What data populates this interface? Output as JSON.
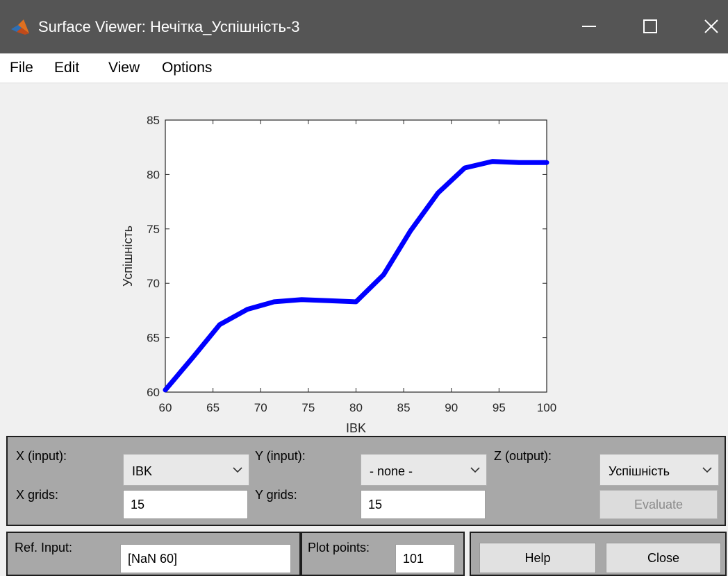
{
  "window": {
    "title": "Surface Viewer: Нечітка_Успішність-3",
    "icon": "matlab-logo-icon",
    "controls": [
      "minimize-icon",
      "maximize-icon",
      "close-icon"
    ]
  },
  "menu": {
    "items": [
      {
        "label": "File"
      },
      {
        "label": "Edit"
      },
      {
        "label": "View"
      },
      {
        "label": "Options"
      }
    ]
  },
  "chart_data": {
    "type": "line",
    "title": "",
    "xlabel": "IBK",
    "ylabel": "Успішність",
    "xlim": [
      60,
      100
    ],
    "ylim": [
      60,
      85
    ],
    "x_ticks": [
      60,
      65,
      70,
      75,
      80,
      85,
      90,
      95,
      100
    ],
    "y_ticks": [
      60,
      65,
      70,
      75,
      80,
      85
    ],
    "grid": false,
    "series": [
      {
        "color": "#0000ff",
        "x": [
          60,
          62.9,
          65.7,
          68.6,
          71.4,
          74.3,
          77.1,
          80,
          82.9,
          85.7,
          88.6,
          91.4,
          94.3,
          97.1,
          100
        ],
        "y": [
          60.2,
          63.2,
          66.2,
          67.6,
          68.3,
          68.5,
          68.4,
          68.3,
          70.8,
          74.8,
          78.3,
          80.6,
          81.2,
          81.1,
          81.1
        ]
      }
    ]
  },
  "controls": {
    "x_input_label": "X (input):",
    "x_input_value": "IBK",
    "y_input_label": "Y (input):",
    "y_input_value": "- none -",
    "z_output_label": "Z (output):",
    "z_output_value": "Успішність",
    "x_grids_label": "X grids:",
    "x_grids_value": "15",
    "y_grids_label": "Y grids:",
    "y_grids_value": "15",
    "evaluate_label": "Evaluate",
    "ref_input_label": "Ref. Input:",
    "ref_input_value": "[NaN 60]",
    "plot_points_label": "Plot points:",
    "plot_points_value": "101",
    "help_label": "Help",
    "close_label": "Close"
  }
}
